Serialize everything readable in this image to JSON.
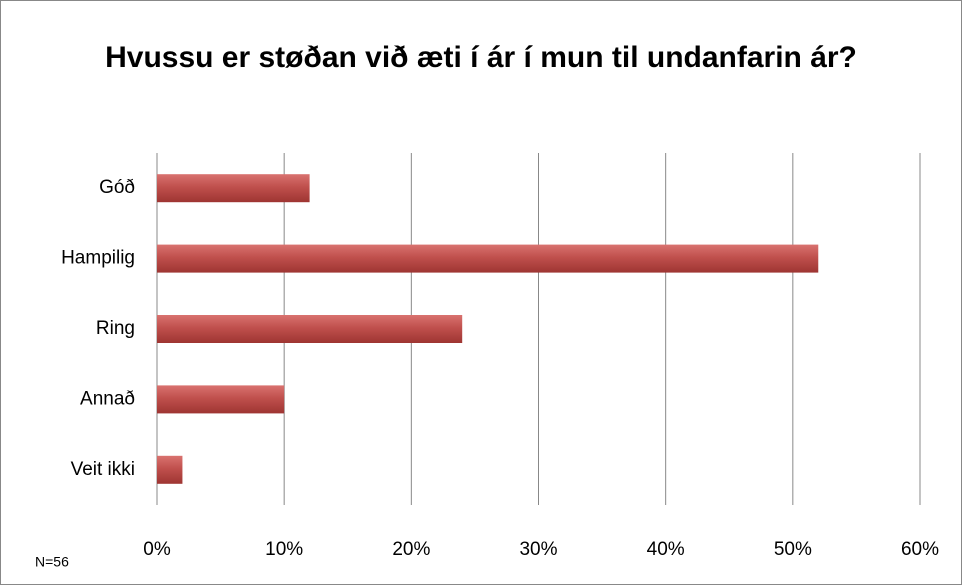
{
  "chart_data": {
    "type": "bar",
    "orientation": "horizontal",
    "title": "Hvussu er støðan við æti í ár í mun til undanfarin ár?",
    "categories": [
      "Góð",
      "Hampilig",
      "Ring",
      "Annað",
      "Veit ikki"
    ],
    "values": [
      12,
      52,
      24,
      10,
      2
    ],
    "color": "#c0504d",
    "xlim": [
      0,
      60
    ],
    "xticks": [
      {
        "value": 0,
        "label": "0%"
      },
      {
        "value": 10,
        "label": "10%"
      },
      {
        "value": 20,
        "label": "20%"
      },
      {
        "value": 30,
        "label": "30%"
      },
      {
        "value": 40,
        "label": "40%"
      },
      {
        "value": 50,
        "label": "50%"
      },
      {
        "value": 60,
        "label": "60%"
      }
    ],
    "grid": true,
    "annotation": "N=56"
  }
}
